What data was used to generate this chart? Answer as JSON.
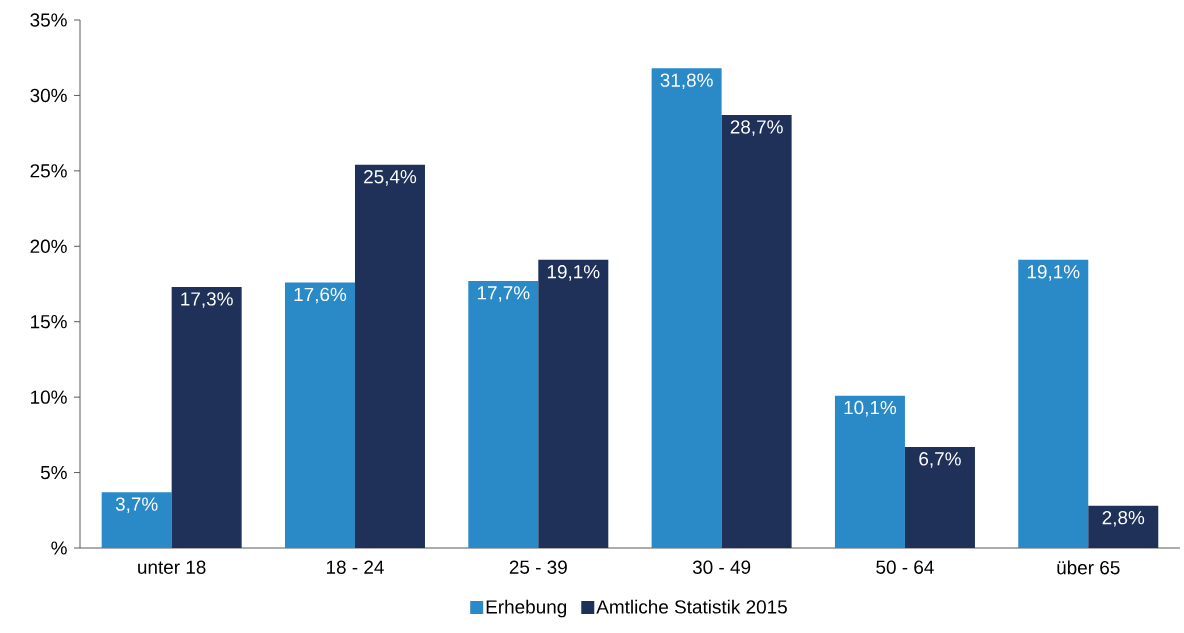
{
  "chart_data": {
    "type": "bar",
    "categories": [
      "unter 18",
      "18 - 24",
      "25 - 39",
      "30 - 49",
      "50 - 64",
      "über 65"
    ],
    "series": [
      {
        "name": "Erhebung",
        "color": "#2a8ac8",
        "values": [
          3.7,
          17.6,
          17.7,
          31.8,
          10.1,
          19.1
        ],
        "value_labels": [
          "3,7%",
          "17,6%",
          "17,7%",
          "31,8%",
          "10,1%",
          "19,1%"
        ]
      },
      {
        "name": "Amtliche Statistik 2015",
        "color": "#1f3159",
        "values": [
          17.3,
          25.4,
          19.1,
          28.7,
          6.7,
          2.8
        ],
        "value_labels": [
          "17,3%",
          "25,4%",
          "19,1%",
          "28,7%",
          "6,7%",
          "2,8%"
        ]
      }
    ],
    "ylim": [
      0,
      35
    ],
    "yticks": [
      {
        "value": 0,
        "label": "%"
      },
      {
        "value": 5,
        "label": "5%"
      },
      {
        "value": 10,
        "label": "10%"
      },
      {
        "value": 15,
        "label": "15%"
      },
      {
        "value": 20,
        "label": "20%"
      },
      {
        "value": 25,
        "label": "25%"
      },
      {
        "value": 30,
        "label": "30%"
      },
      {
        "value": 35,
        "label": "35%"
      }
    ],
    "legend": "bottom"
  }
}
